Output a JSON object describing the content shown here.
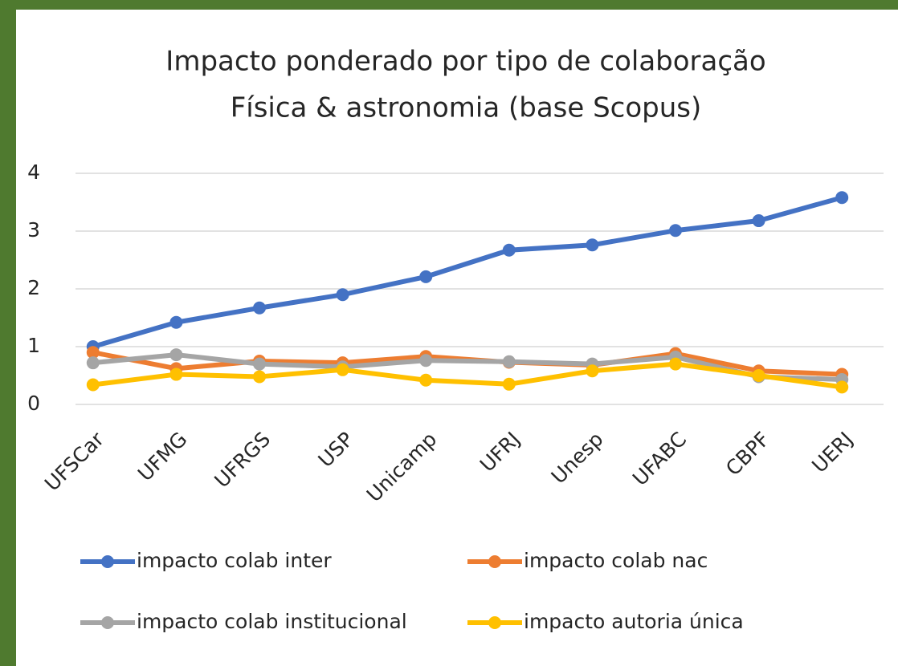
{
  "chart_data": {
    "type": "line",
    "title": "Impacto ponderado por tipo de colaboração",
    "subtitle": "Física & astronomia (base Scopus)",
    "categories": [
      "UFSCar",
      "UFMG",
      "UFRGS",
      "USP",
      "Unicamp",
      "UFRJ",
      "Unesp",
      "UFABC",
      "CBPF",
      "UERJ"
    ],
    "series": [
      {
        "name": "impacto colab inter",
        "color": "#4472c4",
        "values": [
          1.0,
          1.42,
          1.67,
          1.9,
          2.21,
          2.67,
          2.76,
          3.01,
          3.18,
          3.58
        ]
      },
      {
        "name": "impacto colab nac",
        "color": "#ed7d31",
        "values": [
          0.9,
          0.62,
          0.75,
          0.72,
          0.83,
          0.73,
          0.68,
          0.88,
          0.58,
          0.52
        ]
      },
      {
        "name": "impacto colab institucional",
        "color": "#a5a5a5",
        "values": [
          0.72,
          0.86,
          0.7,
          0.65,
          0.76,
          0.74,
          0.7,
          0.82,
          0.48,
          0.43
        ]
      },
      {
        "name": "impacto autoria única",
        "color": "#ffc000",
        "values": [
          0.34,
          0.52,
          0.48,
          0.6,
          0.42,
          0.35,
          0.58,
          0.7,
          0.5,
          0.3
        ]
      }
    ],
    "ylim": [
      0,
      4
    ],
    "yticks": [
      0,
      1,
      2,
      3,
      4
    ],
    "grid": true,
    "legend": "bottom"
  }
}
